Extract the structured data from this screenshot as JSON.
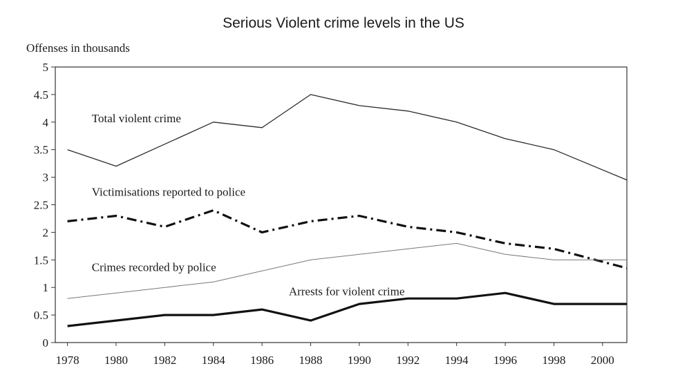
{
  "chart_data": {
    "type": "line",
    "title": "Serious Violent crime levels in the US",
    "ylabel": "Offenses in thousands",
    "xlabel": "",
    "ylim": [
      0,
      5
    ],
    "xlim": [
      1977.5,
      2001
    ],
    "y_ticks": [
      "0",
      "0.5",
      "1",
      "1.5",
      "2",
      "2.5",
      "3",
      "3.5",
      "4",
      "4.5",
      "5"
    ],
    "x_ticks": [
      "1978",
      "1980",
      "1982",
      "1984",
      "1986",
      "1988",
      "1990",
      "1992",
      "1994",
      "1996",
      "1998",
      "2000"
    ],
    "grid": false,
    "legend": "inline labels",
    "series": [
      {
        "name": "Total violent crime",
        "style": "thin solid",
        "x": [
          1978,
          1980,
          1982,
          1984,
          1986,
          1988,
          1990,
          1992,
          1994,
          1996,
          1998,
          2001
        ],
        "y": [
          3.5,
          3.2,
          3.6,
          4.0,
          3.9,
          4.5,
          4.3,
          4.2,
          4.0,
          3.7,
          3.5,
          2.95
        ]
      },
      {
        "name": "Victimisations reported to police",
        "style": "thick dash-dot",
        "x": [
          1978,
          1980,
          1982,
          1984,
          1986,
          1988,
          1990,
          1992,
          1994,
          1996,
          1998,
          2001
        ],
        "y": [
          2.2,
          2.3,
          2.1,
          2.4,
          2.0,
          2.2,
          2.3,
          2.1,
          2.0,
          1.8,
          1.7,
          1.35
        ]
      },
      {
        "name": "Crimes recorded by police",
        "style": "thin light solid",
        "x": [
          1978,
          1980,
          1982,
          1984,
          1986,
          1988,
          1990,
          1992,
          1994,
          1996,
          1998,
          2001
        ],
        "y": [
          0.8,
          0.9,
          1.0,
          1.1,
          1.3,
          1.5,
          1.6,
          1.7,
          1.8,
          1.6,
          1.5,
          1.5
        ]
      },
      {
        "name": "Arrests for violent crime",
        "style": "thick solid",
        "x": [
          1978,
          1980,
          1982,
          1984,
          1986,
          1988,
          1990,
          1992,
          1994,
          1996,
          1998,
          2001
        ],
        "y": [
          0.3,
          0.4,
          0.5,
          0.5,
          0.6,
          0.4,
          0.7,
          0.8,
          0.8,
          0.9,
          0.7,
          0.7
        ]
      }
    ]
  }
}
